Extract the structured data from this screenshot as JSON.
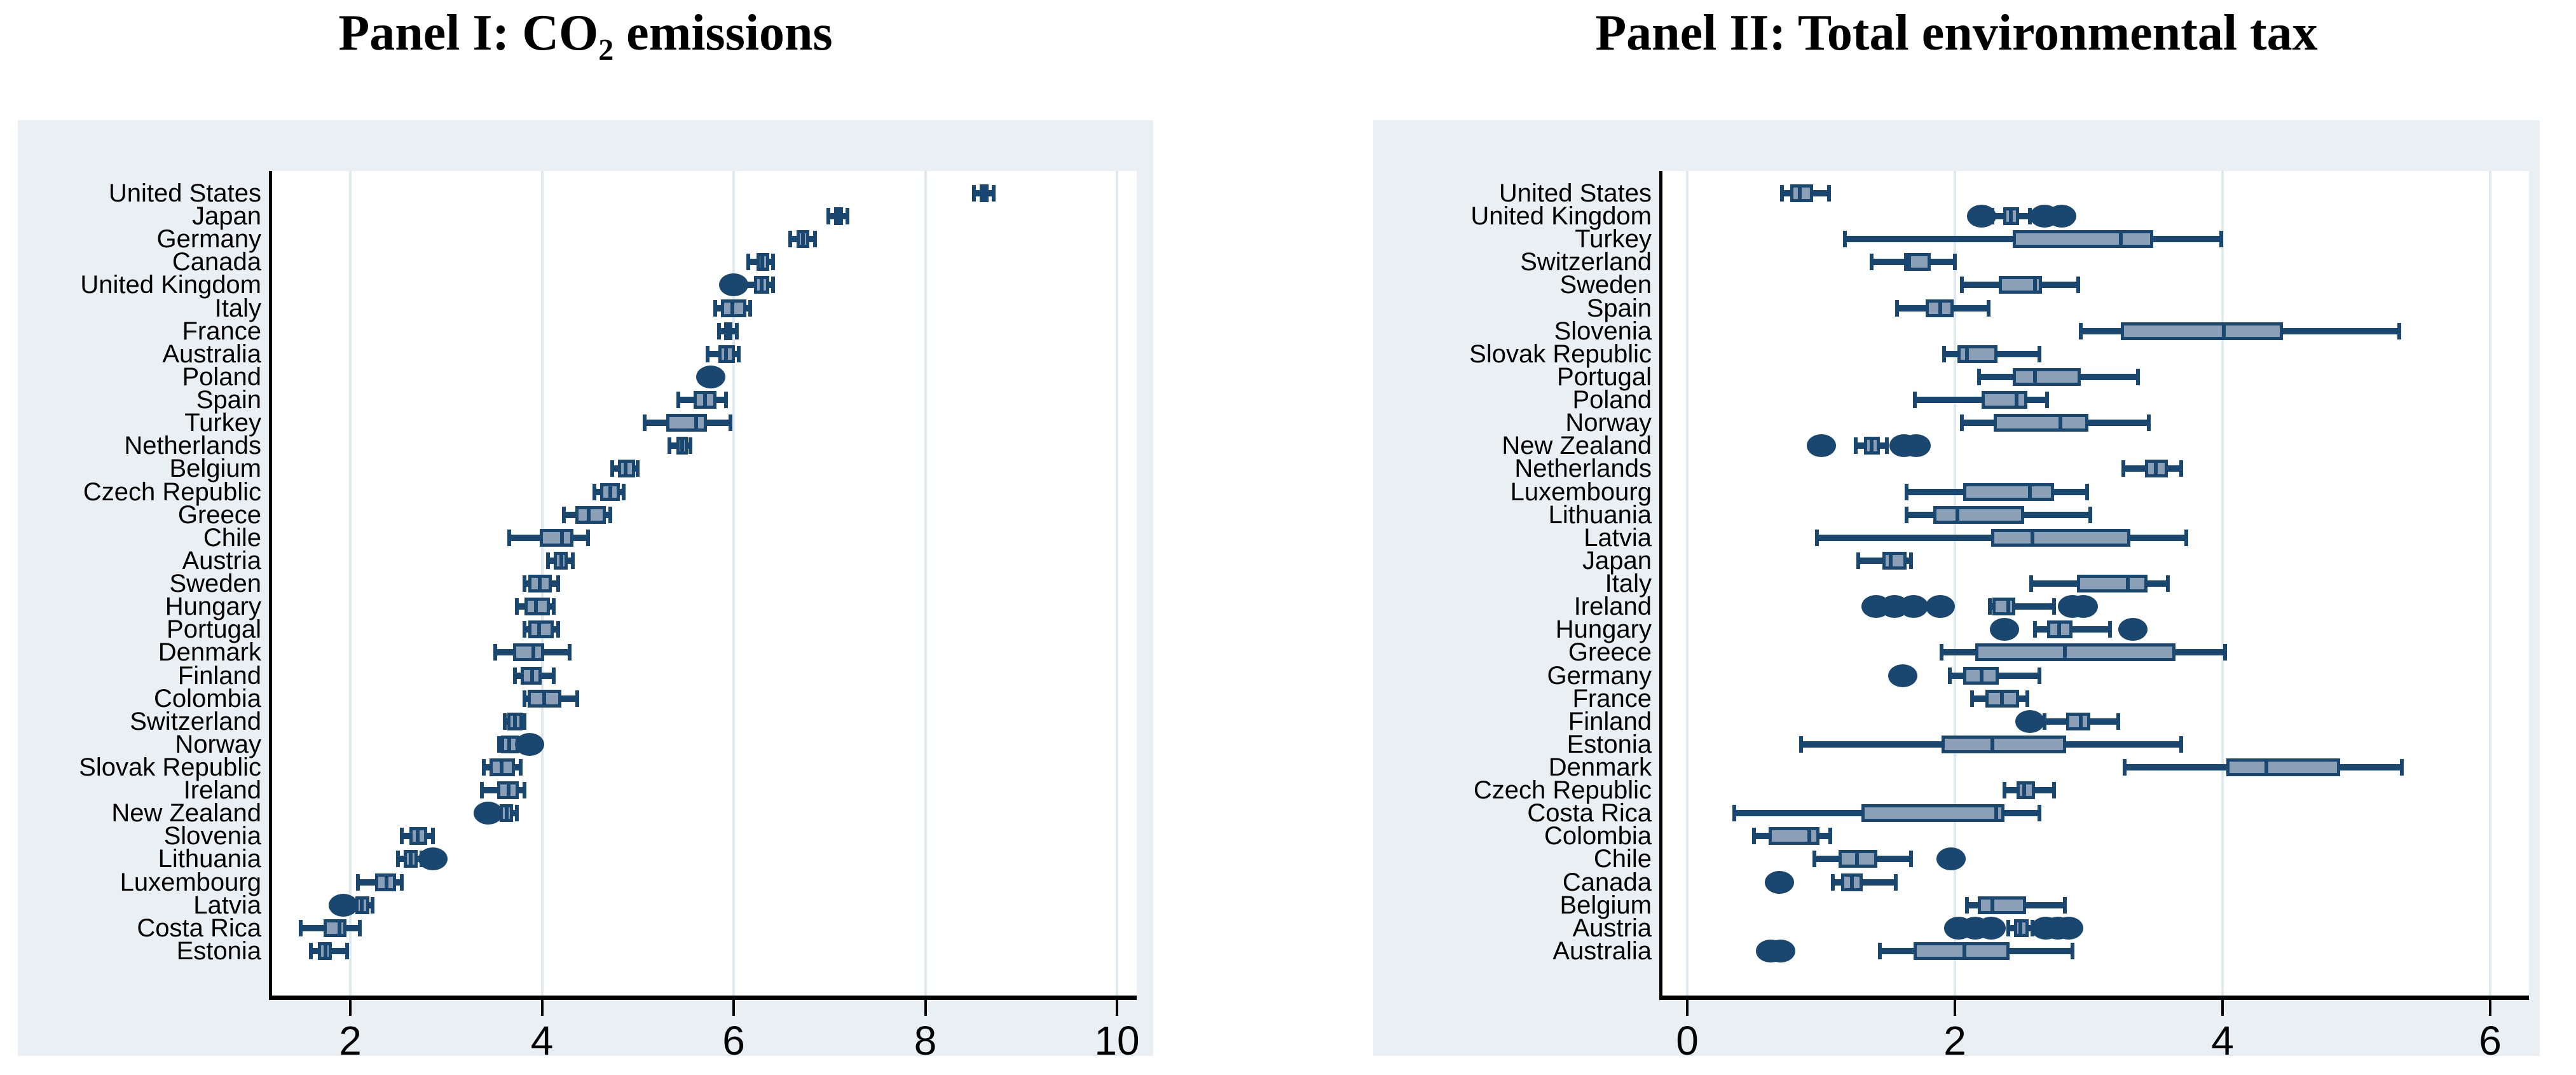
{
  "colors": {
    "navy": "#1a476f",
    "box_fill": "#8ba0b6",
    "panel_background": "#e9eff2",
    "gridline": "#dfe9ee",
    "text": "#000000"
  },
  "chart_data": [
    {
      "type": "boxplot",
      "orientation": "horizontal",
      "title": "Panel I: CO₂ emissions",
      "xlabel": "",
      "ylabel": "",
      "x_ticks": [
        2,
        4,
        6,
        8,
        10
      ],
      "xlim": [
        1.1,
        10.2
      ],
      "grid": true,
      "legend": "none",
      "rows": [
        {
          "label": "United States",
          "whisker_low": 8.51,
          "q1": 8.57,
          "median": 8.61,
          "q3": 8.66,
          "whisker_high": 8.71,
          "outliers": []
        },
        {
          "label": "Japan",
          "whisker_low": 6.99,
          "q1": 7.05,
          "median": 7.09,
          "q3": 7.14,
          "whisker_high": 7.19,
          "outliers": []
        },
        {
          "label": "Germany",
          "whisker_low": 6.59,
          "q1": 6.66,
          "median": 6.72,
          "q3": 6.79,
          "whisker_high": 6.85,
          "outliers": []
        },
        {
          "label": "Canada",
          "whisker_low": 6.15,
          "q1": 6.24,
          "median": 6.3,
          "q3": 6.37,
          "whisker_high": 6.41,
          "outliers": []
        },
        {
          "label": "United Kingdom",
          "whisker_low": 6.08,
          "q1": 6.21,
          "median": 6.29,
          "q3": 6.37,
          "whisker_high": 6.41,
          "outliers": [
            6.0
          ]
        },
        {
          "label": "Italy",
          "whisker_low": 5.81,
          "q1": 5.87,
          "median": 5.99,
          "q3": 6.13,
          "whisker_high": 6.17,
          "outliers": []
        },
        {
          "label": "France",
          "whisker_low": 5.85,
          "q1": 5.9,
          "median": 5.94,
          "q3": 5.99,
          "whisker_high": 6.03,
          "outliers": []
        },
        {
          "label": "Australia",
          "whisker_low": 5.73,
          "q1": 5.84,
          "median": 5.92,
          "q3": 6.01,
          "whisker_high": 6.05,
          "outliers": []
        },
        {
          "label": "Poland",
          "whisker_low": 5.72,
          "q1": 5.74,
          "median": 5.77,
          "q3": 5.8,
          "whisker_high": 5.82,
          "outliers": [
            5.76
          ]
        },
        {
          "label": "Spain",
          "whisker_low": 5.42,
          "q1": 5.58,
          "median": 5.7,
          "q3": 5.82,
          "whisker_high": 5.92,
          "outliers": []
        },
        {
          "label": "Turkey",
          "whisker_low": 5.07,
          "q1": 5.3,
          "median": 5.61,
          "q3": 5.72,
          "whisker_high": 5.97,
          "outliers": []
        },
        {
          "label": "Netherlands",
          "whisker_low": 5.33,
          "q1": 5.4,
          "median": 5.46,
          "q3": 5.52,
          "whisker_high": 5.55,
          "outliers": []
        },
        {
          "label": "Belgium",
          "whisker_low": 4.73,
          "q1": 4.79,
          "median": 4.87,
          "q3": 4.97,
          "whisker_high": 5.0,
          "outliers": []
        },
        {
          "label": "Czech Republic",
          "whisker_low": 4.55,
          "q1": 4.61,
          "median": 4.71,
          "q3": 4.81,
          "whisker_high": 4.85,
          "outliers": []
        },
        {
          "label": "Greece",
          "whisker_low": 4.23,
          "q1": 4.35,
          "median": 4.49,
          "q3": 4.67,
          "whisker_high": 4.71,
          "outliers": []
        },
        {
          "label": "Chile",
          "whisker_low": 3.66,
          "q1": 3.98,
          "median": 4.21,
          "q3": 4.33,
          "whisker_high": 4.48,
          "outliers": []
        },
        {
          "label": "Austria",
          "whisker_low": 4.06,
          "q1": 4.12,
          "median": 4.2,
          "q3": 4.27,
          "whisker_high": 4.32,
          "outliers": []
        },
        {
          "label": "Sweden",
          "whisker_low": 3.82,
          "q1": 3.86,
          "median": 3.98,
          "q3": 4.1,
          "whisker_high": 4.17,
          "outliers": []
        },
        {
          "label": "Hungary",
          "whisker_low": 3.74,
          "q1": 3.82,
          "median": 3.94,
          "q3": 4.08,
          "whisker_high": 4.12,
          "outliers": []
        },
        {
          "label": "Portugal",
          "whisker_low": 3.82,
          "q1": 3.86,
          "median": 3.97,
          "q3": 4.12,
          "whisker_high": 4.17,
          "outliers": []
        },
        {
          "label": "Denmark",
          "whisker_low": 3.51,
          "q1": 3.7,
          "median": 3.91,
          "q3": 4.02,
          "whisker_high": 4.29,
          "outliers": []
        },
        {
          "label": "Finland",
          "whisker_low": 3.72,
          "q1": 3.78,
          "median": 3.9,
          "q3": 4.0,
          "whisker_high": 4.12,
          "outliers": []
        },
        {
          "label": "Colombia",
          "whisker_low": 3.82,
          "q1": 3.85,
          "median": 4.02,
          "q3": 4.2,
          "whisker_high": 4.37,
          "outliers": []
        },
        {
          "label": "Switzerland",
          "whisker_low": 3.61,
          "q1": 3.64,
          "median": 3.72,
          "q3": 3.8,
          "whisker_high": 3.82,
          "outliers": []
        },
        {
          "label": "Norway",
          "whisker_low": 3.55,
          "q1": 3.57,
          "median": 3.66,
          "q3": 3.76,
          "whisker_high": 3.78,
          "outliers": [
            3.87
          ]
        },
        {
          "label": "Slovak Republic",
          "whisker_low": 3.39,
          "q1": 3.45,
          "median": 3.58,
          "q3": 3.72,
          "whisker_high": 3.78,
          "outliers": []
        },
        {
          "label": "Ireland",
          "whisker_low": 3.37,
          "q1": 3.53,
          "median": 3.65,
          "q3": 3.76,
          "whisker_high": 3.82,
          "outliers": []
        },
        {
          "label": "New Zealand",
          "whisker_low": 3.52,
          "q1": 3.56,
          "median": 3.63,
          "q3": 3.7,
          "whisker_high": 3.74,
          "outliers": [
            3.44
          ]
        },
        {
          "label": "Slovenia",
          "whisker_low": 2.54,
          "q1": 2.62,
          "median": 2.7,
          "q3": 2.8,
          "whisker_high": 2.86,
          "outliers": []
        },
        {
          "label": "Lithuania",
          "whisker_low": 2.5,
          "q1": 2.56,
          "median": 2.63,
          "q3": 2.7,
          "whisker_high": 2.74,
          "outliers": [
            2.86
          ]
        },
        {
          "label": "Luxembourg",
          "whisker_low": 2.08,
          "q1": 2.26,
          "median": 2.38,
          "q3": 2.48,
          "whisker_high": 2.54,
          "outliers": []
        },
        {
          "label": "Latvia",
          "whisker_low": 2.02,
          "q1": 2.05,
          "median": 2.12,
          "q3": 2.2,
          "whisker_high": 2.23,
          "outliers": [
            1.93
          ]
        },
        {
          "label": "Costa Rica",
          "whisker_low": 1.48,
          "q1": 1.72,
          "median": 1.89,
          "q3": 1.96,
          "whisker_high": 2.1,
          "outliers": []
        },
        {
          "label": "Estonia",
          "whisker_low": 1.59,
          "q1": 1.66,
          "median": 1.74,
          "q3": 1.81,
          "whisker_high": 1.97,
          "outliers": []
        }
      ]
    },
    {
      "type": "boxplot",
      "orientation": "horizontal",
      "title": "Panel II: Total environmental tax",
      "xlabel": "",
      "ylabel": "",
      "x_ticks": [
        0,
        2,
        4,
        6
      ],
      "xlim": [
        -0.25,
        6.3
      ],
      "grid": true,
      "legend": "none",
      "rows": [
        {
          "label": "United States",
          "whisker_low": 0.71,
          "q1": 0.77,
          "median": 0.84,
          "q3": 0.94,
          "whisker_high": 1.06,
          "outliers": []
        },
        {
          "label": "United Kingdom",
          "whisker_low": 2.28,
          "q1": 2.36,
          "median": 2.42,
          "q3": 2.48,
          "whisker_high": 2.56,
          "outliers": [
            2.2,
            2.67,
            2.8
          ]
        },
        {
          "label": "Turkey",
          "whisker_low": 1.18,
          "q1": 2.43,
          "median": 3.24,
          "q3": 3.48,
          "whisker_high": 3.99,
          "outliers": []
        },
        {
          "label": "Switzerland",
          "whisker_low": 1.38,
          "q1": 1.62,
          "median": 1.66,
          "q3": 1.82,
          "whisker_high": 2.0,
          "outliers": []
        },
        {
          "label": "Sweden",
          "whisker_low": 2.05,
          "q1": 2.33,
          "median": 2.6,
          "q3": 2.65,
          "whisker_high": 2.92,
          "outliers": []
        },
        {
          "label": "Spain",
          "whisker_low": 1.57,
          "q1": 1.78,
          "median": 1.89,
          "q3": 1.99,
          "whisker_high": 2.25,
          "outliers": []
        },
        {
          "label": "Slovenia",
          "whisker_low": 2.94,
          "q1": 3.24,
          "median": 4.01,
          "q3": 4.45,
          "whisker_high": 5.32,
          "outliers": []
        },
        {
          "label": "Slovak Republic",
          "whisker_low": 1.92,
          "q1": 2.02,
          "median": 2.09,
          "q3": 2.32,
          "whisker_high": 2.63,
          "outliers": []
        },
        {
          "label": "Portugal",
          "whisker_low": 2.18,
          "q1": 2.43,
          "median": 2.6,
          "q3": 2.94,
          "whisker_high": 3.37,
          "outliers": []
        },
        {
          "label": "Poland",
          "whisker_low": 1.7,
          "q1": 2.2,
          "median": 2.46,
          "q3": 2.54,
          "whisker_high": 2.69,
          "outliers": []
        },
        {
          "label": "Norway",
          "whisker_low": 2.05,
          "q1": 2.29,
          "median": 2.79,
          "q3": 3.0,
          "whisker_high": 3.45,
          "outliers": []
        },
        {
          "label": "New Zealand",
          "whisker_low": 1.26,
          "q1": 1.32,
          "median": 1.38,
          "q3": 1.44,
          "whisker_high": 1.49,
          "outliers": [
            1.0,
            1.62,
            1.71
          ]
        },
        {
          "label": "Netherlands",
          "whisker_low": 3.26,
          "q1": 3.42,
          "median": 3.5,
          "q3": 3.59,
          "whisker_high": 3.69,
          "outliers": []
        },
        {
          "label": "Luxembourg",
          "whisker_low": 1.64,
          "q1": 2.06,
          "median": 2.56,
          "q3": 2.74,
          "whisker_high": 2.99,
          "outliers": []
        },
        {
          "label": "Lithuania",
          "whisker_low": 1.64,
          "q1": 1.84,
          "median": 2.02,
          "q3": 2.52,
          "whisker_high": 3.01,
          "outliers": []
        },
        {
          "label": "Latvia",
          "whisker_low": 0.97,
          "q1": 2.27,
          "median": 2.58,
          "q3": 3.31,
          "whisker_high": 3.73,
          "outliers": []
        },
        {
          "label": "Japan",
          "whisker_low": 1.28,
          "q1": 1.46,
          "median": 1.52,
          "q3": 1.64,
          "whisker_high": 1.67,
          "outliers": []
        },
        {
          "label": "Italy",
          "whisker_low": 2.57,
          "q1": 2.91,
          "median": 3.29,
          "q3": 3.44,
          "whisker_high": 3.59,
          "outliers": []
        },
        {
          "label": "Ireland",
          "whisker_low": 2.26,
          "q1": 2.28,
          "median": 2.4,
          "q3": 2.45,
          "whisker_high": 2.74,
          "outliers": [
            1.41,
            1.55,
            1.69,
            1.89,
            2.88,
            2.96
          ]
        },
        {
          "label": "Hungary",
          "whisker_low": 2.6,
          "q1": 2.69,
          "median": 2.78,
          "q3": 2.88,
          "whisker_high": 3.16,
          "outliers": [
            2.37,
            3.33
          ]
        },
        {
          "label": "Greece",
          "whisker_low": 1.9,
          "q1": 2.15,
          "median": 2.82,
          "q3": 3.65,
          "whisker_high": 4.02,
          "outliers": []
        },
        {
          "label": "Germany",
          "whisker_low": 1.96,
          "q1": 2.06,
          "median": 2.2,
          "q3": 2.33,
          "whisker_high": 2.63,
          "outliers": [
            1.61
          ]
        },
        {
          "label": "France",
          "whisker_low": 2.13,
          "q1": 2.23,
          "median": 2.35,
          "q3": 2.48,
          "whisker_high": 2.54,
          "outliers": []
        },
        {
          "label": "Finland",
          "whisker_low": 2.67,
          "q1": 2.83,
          "median": 2.94,
          "q3": 3.01,
          "whisker_high": 3.22,
          "outliers": [
            2.56
          ]
        },
        {
          "label": "Estonia",
          "whisker_low": 0.85,
          "q1": 1.9,
          "median": 2.28,
          "q3": 2.83,
          "whisker_high": 3.69,
          "outliers": []
        },
        {
          "label": "Denmark",
          "whisker_low": 3.27,
          "q1": 4.03,
          "median": 4.33,
          "q3": 4.88,
          "whisker_high": 5.34,
          "outliers": []
        },
        {
          "label": "Czech Republic",
          "whisker_low": 2.37,
          "q1": 2.46,
          "median": 2.52,
          "q3": 2.6,
          "whisker_high": 2.74,
          "outliers": []
        },
        {
          "label": "Costa Rica",
          "whisker_low": 0.35,
          "q1": 1.3,
          "median": 2.31,
          "q3": 2.37,
          "whisker_high": 2.63,
          "outliers": []
        },
        {
          "label": "Colombia",
          "whisker_low": 0.5,
          "q1": 0.61,
          "median": 0.91,
          "q3": 0.99,
          "whisker_high": 1.07,
          "outliers": []
        },
        {
          "label": "Chile",
          "whisker_low": 0.95,
          "q1": 1.13,
          "median": 1.27,
          "q3": 1.42,
          "whisker_high": 1.67,
          "outliers": [
            1.97
          ]
        },
        {
          "label": "Canada",
          "whisker_low": 1.09,
          "q1": 1.15,
          "median": 1.23,
          "q3": 1.31,
          "whisker_high": 1.56,
          "outliers": [
            0.69
          ]
        },
        {
          "label": "Belgium",
          "whisker_low": 2.09,
          "q1": 2.17,
          "median": 2.28,
          "q3": 2.53,
          "whisker_high": 2.82,
          "outliers": []
        },
        {
          "label": "Austria",
          "whisker_low": 2.4,
          "q1": 2.44,
          "median": 2.49,
          "q3": 2.55,
          "whisker_high": 2.58,
          "outliers": [
            2.03,
            2.15,
            2.27,
            2.68,
            2.77,
            2.85
          ]
        },
        {
          "label": "Australia",
          "whisker_low": 1.44,
          "q1": 1.69,
          "median": 2.07,
          "q3": 2.41,
          "whisker_high": 2.88,
          "outliers": [
            0.62,
            0.7
          ]
        }
      ]
    }
  ]
}
